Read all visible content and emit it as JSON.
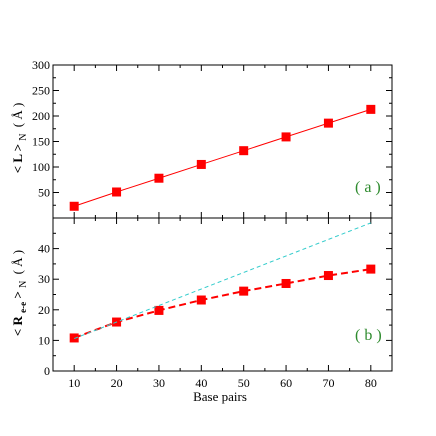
{
  "chart_data": [
    {
      "type": "line",
      "panel_label": "( a )",
      "ylabel": {
        "main": "< L >",
        "sub": "N",
        "unit": "( Å )"
      },
      "xlim": [
        5,
        85
      ],
      "ylim": [
        0,
        300
      ],
      "yticks": [
        50,
        100,
        150,
        200,
        250,
        300
      ],
      "grid": false,
      "legend": "none",
      "series": [
        {
          "color": "#ff0000",
          "line_style": "solid",
          "marker": "square",
          "x": [
            10,
            20,
            30,
            40,
            50,
            60,
            70,
            80
          ],
          "y": [
            23,
            51,
            78,
            105,
            132,
            159,
            186,
            213
          ]
        }
      ]
    },
    {
      "type": "line",
      "panel_label": "( b )",
      "xlabel": "Base pairs",
      "ylabel": {
        "main": "< R",
        "main_sub": "e-e",
        "close": ">",
        "sub": "N",
        "unit": "( Å )"
      },
      "xlim": [
        5,
        85
      ],
      "ylim": [
        0,
        50
      ],
      "xticks": [
        10,
        20,
        30,
        40,
        50,
        60,
        70,
        80
      ],
      "yticks": [
        0,
        10,
        20,
        30,
        40
      ],
      "grid": false,
      "legend": "none",
      "series": [
        {
          "color": "#ff0000",
          "line_style": "dashed",
          "marker": "square",
          "x": [
            10,
            20,
            30,
            40,
            50,
            60,
            70,
            80
          ],
          "y": [
            10.8,
            16.0,
            19.8,
            23.2,
            26.1,
            28.6,
            31.2,
            33.3
          ]
        },
        {
          "color": "#33cccc",
          "line_style": "dashed",
          "marker": "none",
          "x": [
            10,
            80
          ],
          "y": [
            10.6,
            48.4
          ]
        }
      ]
    }
  ]
}
